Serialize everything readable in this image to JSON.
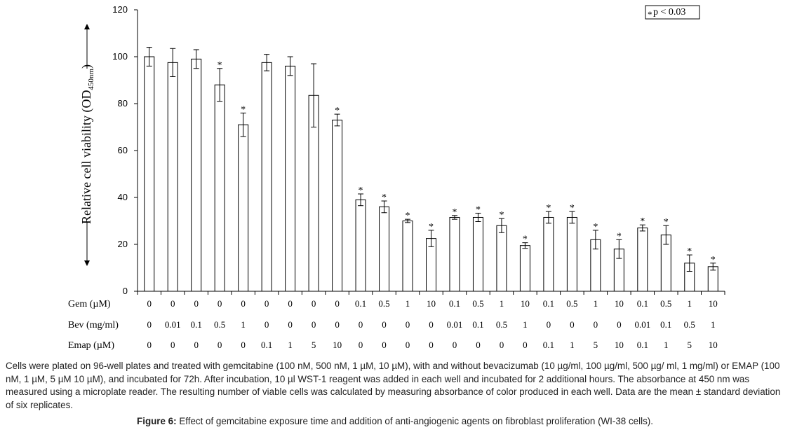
{
  "chart_data": {
    "type": "bar",
    "ylabel_main": "Relative cell viability (OD",
    "ylabel_sub": "450nm",
    "ylabel_end": ")",
    "ylim": [
      0,
      120
    ],
    "yticks": [
      0,
      20,
      40,
      60,
      80,
      100,
      120
    ],
    "legend": {
      "marker": "*",
      "text": "p < 0.03",
      "placement": "top-right"
    },
    "rows": [
      {
        "label": "Gem (µM)",
        "values": [
          "0",
          "0",
          "0",
          "0",
          "0",
          "0",
          "0",
          "0",
          "0",
          "0.1",
          "0.5",
          "1",
          "10",
          "0.1",
          "0.5",
          "1",
          "10",
          "0.1",
          "0.5",
          "1",
          "10",
          "0.1",
          "0.5",
          "1",
          "10"
        ]
      },
      {
        "label": "Bev (mg/ml)",
        "values": [
          "0",
          "0.01",
          "0.1",
          "0.5",
          "1",
          "0",
          "0",
          "0",
          "0",
          "0",
          "0",
          "0",
          "0",
          "0.01",
          "0.1",
          "0.5",
          "1",
          "0",
          "0",
          "0",
          "0",
          "0.01",
          "0.1",
          "0.5",
          "1"
        ]
      },
      {
        "label": "Emap (µM)",
        "values": [
          "0",
          "0",
          "0",
          "0",
          "0",
          "0.1",
          "1",
          "5",
          "10",
          "0",
          "0",
          "0",
          "0",
          "0",
          "0",
          "0",
          "0",
          "0.1",
          "1",
          "5",
          "10",
          "0.1",
          "1",
          "5",
          "10"
        ]
      }
    ],
    "values": [
      100,
      97.5,
      99,
      88,
      71,
      97.5,
      96,
      83.5,
      73,
      39,
      36,
      30,
      22.5,
      31.5,
      31.5,
      28,
      19.5,
      31.5,
      31.5,
      22,
      18,
      27,
      24,
      12,
      10.5
    ],
    "errors": [
      4,
      6,
      4,
      7,
      5,
      3.5,
      4,
      13.5,
      2.5,
      2.5,
      2.5,
      0.7,
      3.5,
      0.8,
      1.8,
      3,
      1.2,
      2.5,
      2.5,
      4,
      4,
      1.3,
      4,
      3.5,
      1.5
    ],
    "significant": [
      false,
      false,
      false,
      true,
      true,
      false,
      false,
      false,
      true,
      true,
      true,
      true,
      true,
      true,
      true,
      true,
      true,
      true,
      true,
      true,
      true,
      true,
      true,
      true,
      true
    ]
  },
  "caption": "Cells were plated on 96-well plates and treated with gemcitabine (100 nM, 500 nM, 1 µM, 10 µM), with and without bevacizumab (10 µg/ml, 100 µg/ml, 500 µg/ ml, 1 mg/ml) or EMAP (100 nM, 1 µM, 5 µM 10 µM), and incubated for 72h. After incubation, 10 µl WST-1 reagent was added in each well and incubated for 2 additional hours. The absorbance at 450 nm was measured using a microplate reader. The resulting number of viable cells was calculated by measuring absorbance of color produced in each well. Data are the mean ± standard deviation of six replicates.",
  "figure_label": "Figure 6:",
  "figure_title": "Effect of gemcitabine exposure time and addition of anti-angiogenic agents on fibroblast proliferation (WI-38 cells)."
}
